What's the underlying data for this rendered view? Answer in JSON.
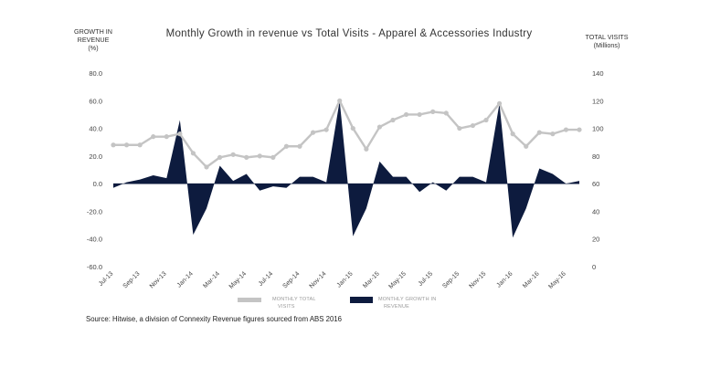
{
  "chart_data": {
    "type": "area+line",
    "title": "Monthly Growth in revenue  vs Total Visits - Apparel & Accessories Industry",
    "left_axis": {
      "title_lines": [
        "GROWTH IN",
        "REVENUE",
        "(%)"
      ],
      "ylim": [
        -60,
        80
      ],
      "ticks": [
        "80.0",
        "60.0",
        "40.0",
        "20.0",
        "0.0",
        "-20.0",
        "-40.0",
        "-60.0"
      ]
    },
    "right_axis": {
      "title_lines": [
        "TOTAL VISITS",
        "(Millions)"
      ],
      "ylim": [
        0,
        140
      ],
      "ticks": [
        "140",
        "120",
        "100",
        "80",
        "60",
        "40",
        "20",
        "0"
      ]
    },
    "x_tick_labels": [
      "Jul-13",
      "Sep-13",
      "Nov-13",
      "Jan-14",
      "Mar-14",
      "May-14",
      "Jul-14",
      "Sep-14",
      "Nov-14",
      "Jan-15",
      "Mar-15",
      "May-15",
      "Jul-15",
      "Sep-15",
      "Nov-15",
      "Jan-16",
      "Mar-16",
      "May-16"
    ],
    "months": [
      "Jul-13",
      "Aug-13",
      "Sep-13",
      "Oct-13",
      "Nov-13",
      "Dec-13",
      "Jan-14",
      "Feb-14",
      "Mar-14",
      "Apr-14",
      "May-14",
      "Jun-14",
      "Jul-14",
      "Aug-14",
      "Sep-14",
      "Oct-14",
      "Nov-14",
      "Dec-14",
      "Jan-15",
      "Feb-15",
      "Mar-15",
      "Apr-15",
      "May-15",
      "Jun-15",
      "Jul-15",
      "Aug-15",
      "Sep-15",
      "Oct-15",
      "Nov-15",
      "Dec-15",
      "Jan-16",
      "Feb-16",
      "Mar-16",
      "Apr-16",
      "May-16",
      "Jun-16"
    ],
    "series": [
      {
        "name": "MONTHLY GROWTH IN REVENUE",
        "axis": "left",
        "style": "area",
        "color": "#0d1b3e",
        "values": [
          -3,
          1,
          3,
          6,
          4,
          46,
          -37,
          -18,
          13,
          2,
          7,
          -5,
          -2,
          -3,
          5,
          5,
          1,
          60,
          -38,
          -18,
          16,
          5,
          5,
          -6,
          1,
          -5,
          5,
          5,
          1,
          58,
          -39,
          -18,
          11,
          7,
          0,
          2
        ]
      },
      {
        "name": "MONTHLY TOTAL VISITS",
        "axis": "right",
        "style": "line",
        "color": "#c4c4c4",
        "values": [
          88,
          88,
          88,
          94,
          94,
          96,
          82,
          72,
          79,
          81,
          79,
          80,
          79,
          87,
          87,
          97,
          99,
          120,
          100,
          85,
          101,
          106,
          110,
          110,
          112,
          111,
          100,
          102,
          106,
          118,
          96,
          87,
          97,
          96,
          99,
          99
        ]
      }
    ],
    "legend": [
      {
        "label_lines": [
          "MONTHLY TOTAL",
          "VISITS"
        ],
        "color": "#c4c4c4",
        "shape": "line"
      },
      {
        "label_lines": [
          "MONTHLY GROWTH IN",
          "REVENUE"
        ],
        "color": "#0d1b3e",
        "shape": "bar"
      }
    ],
    "legend_position": "bottom",
    "grid": false
  },
  "source_text": "Source: Hitwise, a division of Connexity   Revenue figures sourced from ABS 2016"
}
